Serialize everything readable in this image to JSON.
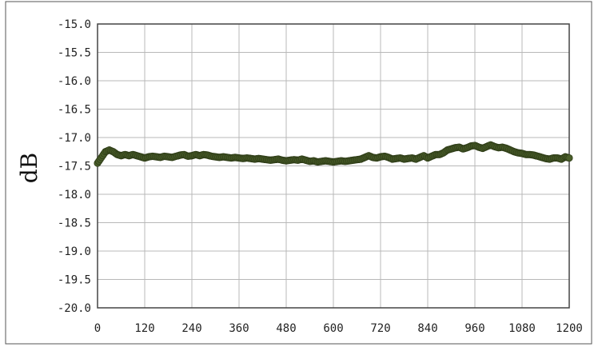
{
  "chart_data": {
    "type": "scatter",
    "title": "",
    "xlabel": "",
    "ylabel": "dB",
    "xlim": [
      0,
      1200
    ],
    "ylim": [
      -20.0,
      -15.0
    ],
    "x_ticks": [
      "0",
      "120",
      "240",
      "360",
      "480",
      "600",
      "720",
      "840",
      "960",
      "1080",
      "1200"
    ],
    "y_ticks": [
      "-15.0",
      "-15.5",
      "-16.0",
      "-16.5",
      "-17.0",
      "-17.5",
      "-18.0",
      "-18.5",
      "-19.0",
      "-19.5",
      "-20.0"
    ],
    "grid": true,
    "legend": "none",
    "marker_color": "#4a5e2a",
    "marker_edge_color": "#2f3d18",
    "series": [
      {
        "points": [
          [
            0,
            -17.45
          ],
          [
            10,
            -17.35
          ],
          [
            20,
            -17.25
          ],
          [
            30,
            -17.22
          ],
          [
            40,
            -17.25
          ],
          [
            50,
            -17.3
          ],
          [
            60,
            -17.32
          ],
          [
            70,
            -17.3
          ],
          [
            80,
            -17.32
          ],
          [
            90,
            -17.3
          ],
          [
            100,
            -17.32
          ],
          [
            110,
            -17.34
          ],
          [
            120,
            -17.36
          ],
          [
            130,
            -17.34
          ],
          [
            140,
            -17.33
          ],
          [
            150,
            -17.34
          ],
          [
            160,
            -17.35
          ],
          [
            170,
            -17.33
          ],
          [
            180,
            -17.34
          ],
          [
            190,
            -17.35
          ],
          [
            200,
            -17.33
          ],
          [
            210,
            -17.31
          ],
          [
            220,
            -17.3
          ],
          [
            230,
            -17.33
          ],
          [
            240,
            -17.32
          ],
          [
            250,
            -17.3
          ],
          [
            260,
            -17.32
          ],
          [
            270,
            -17.3
          ],
          [
            280,
            -17.31
          ],
          [
            290,
            -17.33
          ],
          [
            300,
            -17.34
          ],
          [
            310,
            -17.35
          ],
          [
            320,
            -17.34
          ],
          [
            330,
            -17.35
          ],
          [
            340,
            -17.36
          ],
          [
            350,
            -17.35
          ],
          [
            360,
            -17.36
          ],
          [
            370,
            -17.37
          ],
          [
            380,
            -17.36
          ],
          [
            390,
            -17.37
          ],
          [
            400,
            -17.38
          ],
          [
            410,
            -17.37
          ],
          [
            420,
            -17.38
          ],
          [
            430,
            -17.39
          ],
          [
            440,
            -17.4
          ],
          [
            450,
            -17.39
          ],
          [
            460,
            -17.38
          ],
          [
            470,
            -17.4
          ],
          [
            480,
            -17.41
          ],
          [
            490,
            -17.4
          ],
          [
            500,
            -17.39
          ],
          [
            510,
            -17.4
          ],
          [
            520,
            -17.38
          ],
          [
            530,
            -17.4
          ],
          [
            540,
            -17.42
          ],
          [
            550,
            -17.41
          ],
          [
            560,
            -17.43
          ],
          [
            570,
            -17.42
          ],
          [
            580,
            -17.41
          ],
          [
            590,
            -17.42
          ],
          [
            600,
            -17.43
          ],
          [
            610,
            -17.42
          ],
          [
            620,
            -17.41
          ],
          [
            630,
            -17.42
          ],
          [
            640,
            -17.41
          ],
          [
            650,
            -17.4
          ],
          [
            660,
            -17.39
          ],
          [
            670,
            -17.38
          ],
          [
            680,
            -17.35
          ],
          [
            690,
            -17.32
          ],
          [
            700,
            -17.35
          ],
          [
            710,
            -17.36
          ],
          [
            720,
            -17.34
          ],
          [
            730,
            -17.33
          ],
          [
            740,
            -17.35
          ],
          [
            750,
            -17.38
          ],
          [
            760,
            -17.37
          ],
          [
            770,
            -17.36
          ],
          [
            780,
            -17.38
          ],
          [
            790,
            -17.37
          ],
          [
            800,
            -17.36
          ],
          [
            810,
            -17.38
          ],
          [
            820,
            -17.35
          ],
          [
            830,
            -17.32
          ],
          [
            840,
            -17.36
          ],
          [
            850,
            -17.33
          ],
          [
            860,
            -17.3
          ],
          [
            870,
            -17.3
          ],
          [
            880,
            -17.27
          ],
          [
            890,
            -17.22
          ],
          [
            900,
            -17.2
          ],
          [
            910,
            -17.18
          ],
          [
            920,
            -17.17
          ],
          [
            930,
            -17.2
          ],
          [
            940,
            -17.18
          ],
          [
            950,
            -17.15
          ],
          [
            960,
            -17.14
          ],
          [
            970,
            -17.17
          ],
          [
            980,
            -17.19
          ],
          [
            990,
            -17.16
          ],
          [
            1000,
            -17.13
          ],
          [
            1010,
            -17.16
          ],
          [
            1020,
            -17.18
          ],
          [
            1030,
            -17.17
          ],
          [
            1040,
            -17.19
          ],
          [
            1050,
            -17.22
          ],
          [
            1060,
            -17.25
          ],
          [
            1070,
            -17.27
          ],
          [
            1080,
            -17.28
          ],
          [
            1090,
            -17.3
          ],
          [
            1100,
            -17.3
          ],
          [
            1110,
            -17.31
          ],
          [
            1120,
            -17.33
          ],
          [
            1130,
            -17.35
          ],
          [
            1140,
            -17.37
          ],
          [
            1150,
            -17.38
          ],
          [
            1160,
            -17.36
          ],
          [
            1170,
            -17.36
          ],
          [
            1180,
            -17.38
          ],
          [
            1190,
            -17.34
          ],
          [
            1200,
            -17.36
          ]
        ]
      }
    ]
  }
}
